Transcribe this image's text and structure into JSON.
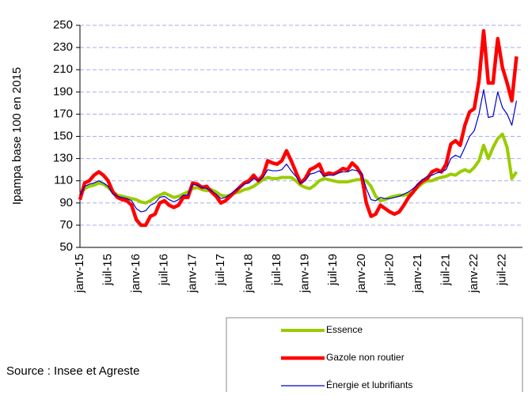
{
  "chart_data": {
    "type": "line",
    "y_label": "Ipampa base 100 en 2015",
    "source": "Source : Insee et Agreste",
    "categories": [
      "janv-15",
      null,
      null,
      null,
      null,
      null,
      "juil-15",
      null,
      null,
      null,
      null,
      null,
      "janv-16",
      null,
      null,
      null,
      null,
      null,
      "juil-16",
      null,
      null,
      null,
      null,
      null,
      "janv-17",
      null,
      null,
      null,
      null,
      null,
      "juil-17",
      null,
      null,
      null,
      null,
      null,
      "janv-18",
      null,
      null,
      null,
      null,
      null,
      "juil-18",
      null,
      null,
      null,
      null,
      null,
      "janv-19",
      null,
      null,
      null,
      null,
      null,
      "juil-19",
      null,
      null,
      null,
      null,
      null,
      "janv-20",
      null,
      null,
      null,
      null,
      null,
      "juil-20",
      null,
      null,
      null,
      null,
      null,
      "janv-21",
      null,
      null,
      null,
      null,
      null,
      "juil-21",
      null,
      null,
      null,
      null,
      null,
      "janv-22",
      null,
      null,
      null,
      null,
      null,
      "juil-22",
      null,
      null,
      null
    ],
    "series": [
      {
        "name": "Essence",
        "color": "#99cc00",
        "values": [
          97,
          103,
          105,
          106,
          108,
          107,
          104,
          100,
          97,
          96,
          95,
          94,
          93,
          91,
          90,
          92,
          95,
          97,
          99,
          97,
          95,
          96,
          98,
          100,
          103,
          104,
          102,
          101,
          102,
          100,
          97,
          96,
          97,
          99,
          100,
          102,
          103,
          105,
          108,
          111,
          113,
          112,
          112,
          113,
          113,
          113,
          110,
          106,
          104,
          103,
          106,
          110,
          112,
          111,
          110,
          109,
          109,
          109,
          110,
          111,
          111,
          110,
          105,
          96,
          92,
          93,
          95,
          96,
          97,
          97,
          98,
          100,
          104,
          108,
          110,
          110,
          112,
          113,
          114,
          116,
          115,
          118,
          120,
          118,
          122,
          128,
          142,
          130,
          140,
          148,
          152,
          140,
          112,
          118
        ]
      },
      {
        "name": "Gazole non routier",
        "color": "#ff0000",
        "values": [
          93,
          108,
          110,
          115,
          118,
          115,
          110,
          100,
          95,
          93,
          92,
          88,
          75,
          70,
          70,
          78,
          80,
          90,
          92,
          88,
          86,
          88,
          95,
          95,
          108,
          107,
          104,
          105,
          100,
          96,
          90,
          92,
          96,
          100,
          104,
          108,
          110,
          115,
          110,
          115,
          128,
          126,
          125,
          128,
          137,
          128,
          118,
          108,
          112,
          120,
          122,
          125,
          115,
          117,
          116,
          118,
          121,
          120,
          126,
          122,
          115,
          90,
          78,
          80,
          88,
          85,
          82,
          80,
          82,
          88,
          95,
          100,
          106,
          110,
          112,
          118,
          120,
          118,
          125,
          143,
          146,
          142,
          160,
          172,
          175,
          200,
          245,
          198,
          198,
          238,
          212,
          198,
          182,
          222
        ]
      },
      {
        "name": "Énergie et lubrifiants",
        "color": "#0000cc",
        "values": [
          97,
          105,
          107,
          108,
          110,
          108,
          105,
          98,
          96,
          95,
          94,
          92,
          85,
          82,
          83,
          88,
          90,
          95,
          96,
          93,
          91,
          93,
          97,
          97,
          107,
          106,
          104,
          103,
          101,
          98,
          94,
          95,
          98,
          101,
          104,
          107,
          108,
          112,
          110,
          113,
          120,
          119,
          119,
          120,
          125,
          119,
          114,
          108,
          110,
          116,
          117,
          119,
          114,
          115,
          115,
          117,
          118,
          118,
          120,
          119,
          117,
          103,
          93,
          92,
          95,
          94,
          94,
          95,
          96,
          98,
          100,
          103,
          107,
          111,
          114,
          115,
          117,
          118,
          120,
          130,
          133,
          131,
          140,
          150,
          155,
          170,
          192,
          167,
          168,
          190,
          176,
          170,
          160,
          182
        ]
      }
    ],
    "ylim": [
      50,
      250
    ],
    "yticks": [
      50,
      70,
      90,
      110,
      130,
      150,
      170,
      190,
      210,
      230,
      250
    ],
    "grid": true
  }
}
